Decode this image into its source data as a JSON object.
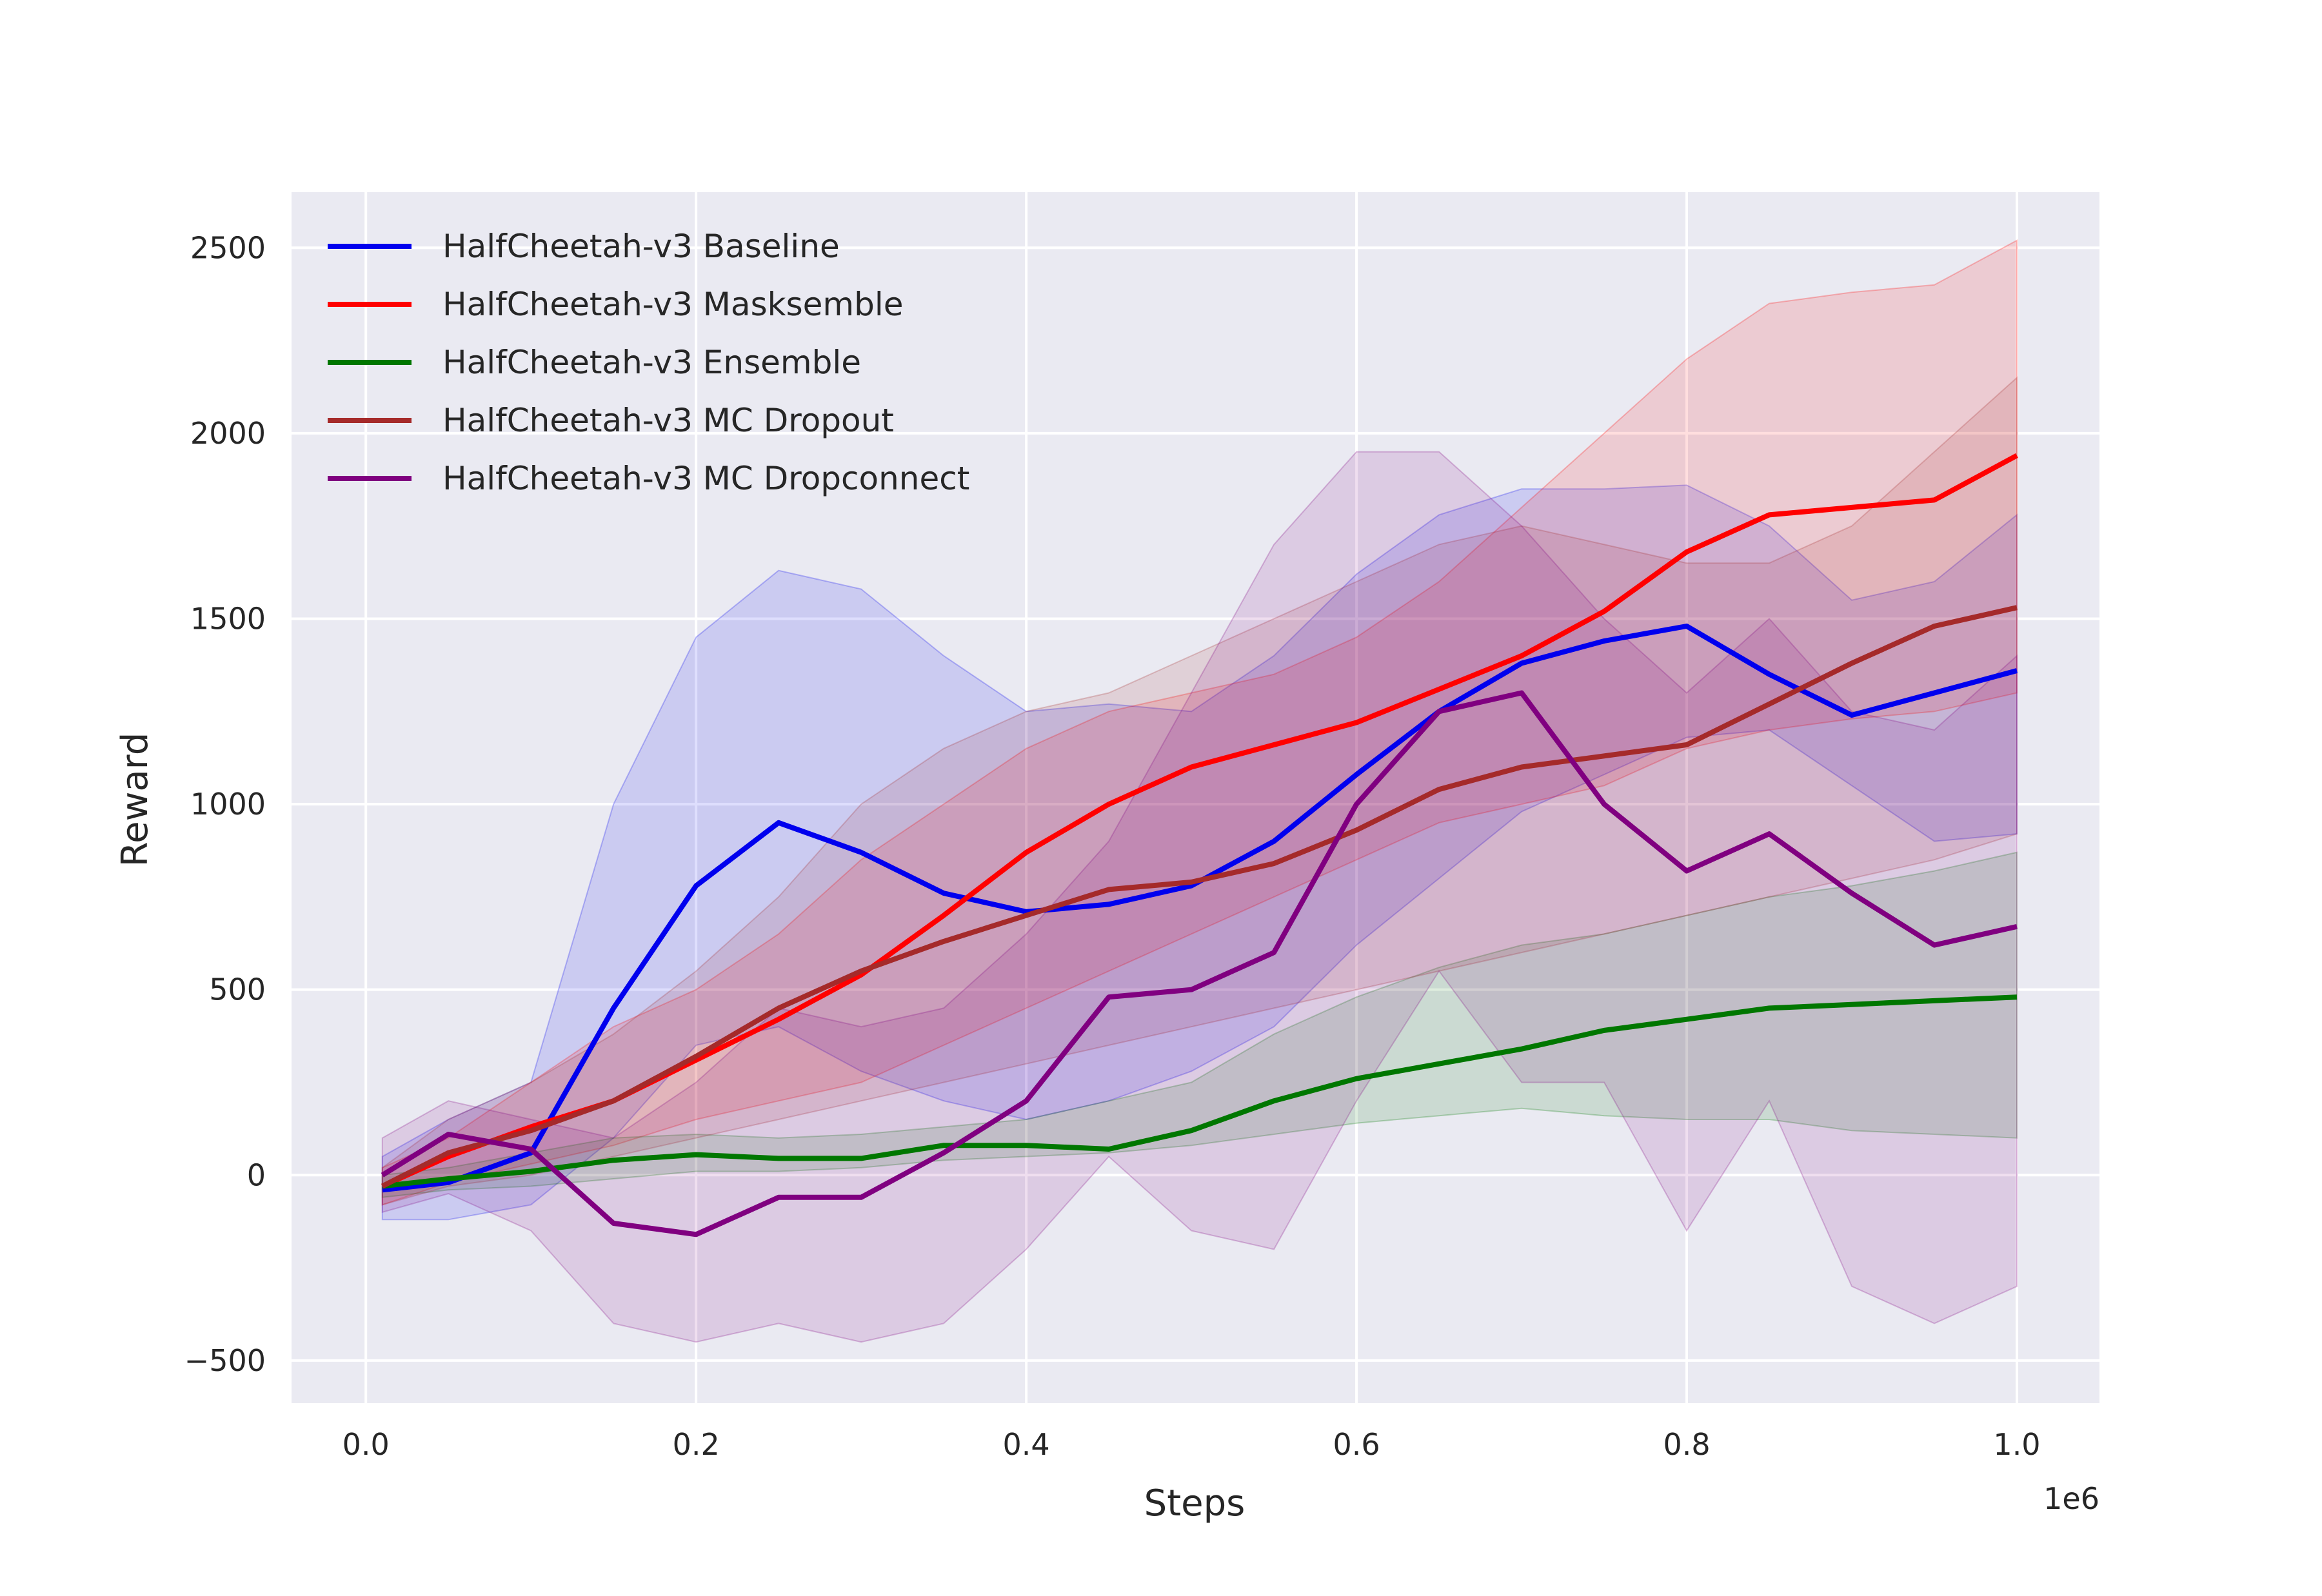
{
  "chart_data": {
    "type": "line",
    "title": "",
    "xlabel": "Steps",
    "ylabel": "Reward",
    "x_offset_label": "1e6",
    "xlim": [
      -0.045,
      1.05
    ],
    "ylim": [
      -615,
      2650
    ],
    "x_ticks": [
      0.0,
      0.2,
      0.4,
      0.6,
      0.8,
      1.0
    ],
    "x_tick_labels": [
      "0.0",
      "0.2",
      "0.4",
      "0.6",
      "0.8",
      "1.0"
    ],
    "y_ticks": [
      -500,
      0,
      500,
      1000,
      1500,
      2000,
      2500
    ],
    "y_tick_labels": [
      "−500",
      "0",
      "500",
      "1000",
      "1500",
      "2000",
      "2500"
    ],
    "grid": true,
    "legend_position": "top-left",
    "plot_background": "#eaeaf2",
    "x": [
      0.01,
      0.05,
      0.1,
      0.15,
      0.2,
      0.25,
      0.3,
      0.35,
      0.4,
      0.45,
      0.5,
      0.55,
      0.6,
      0.65,
      0.7,
      0.75,
      0.8,
      0.85,
      0.9,
      0.95,
      1.0
    ],
    "series": [
      {
        "name": "HalfCheetah-v3 Baseline",
        "color": "#0000ee",
        "values": [
          -40,
          -20,
          60,
          450,
          780,
          950,
          870,
          760,
          710,
          730,
          780,
          900,
          1080,
          1250,
          1380,
          1440,
          1480,
          1350,
          1240,
          1300,
          1360
        ],
        "upper": [
          50,
          150,
          250,
          1000,
          1450,
          1630,
          1580,
          1400,
          1250,
          1270,
          1250,
          1400,
          1620,
          1780,
          1850,
          1850,
          1860,
          1750,
          1550,
          1600,
          1780
        ],
        "lower": [
          -120,
          -120,
          -80,
          100,
          350,
          400,
          280,
          200,
          150,
          200,
          280,
          400,
          620,
          800,
          980,
          1080,
          1180,
          1200,
          1050,
          900,
          920
        ]
      },
      {
        "name": "HalfCheetah-v3 Masksemble",
        "color": "#ff0000",
        "values": [
          -30,
          50,
          130,
          200,
          310,
          420,
          540,
          700,
          870,
          1000,
          1100,
          1160,
          1220,
          1310,
          1400,
          1520,
          1680,
          1780,
          1800,
          1820,
          1940
        ],
        "upper": [
          20,
          100,
          250,
          400,
          500,
          650,
          850,
          1000,
          1150,
          1250,
          1300,
          1350,
          1450,
          1600,
          1800,
          2000,
          2200,
          2350,
          2380,
          2400,
          2520
        ],
        "lower": [
          -80,
          -20,
          30,
          80,
          150,
          200,
          250,
          350,
          450,
          550,
          650,
          750,
          850,
          950,
          1000,
          1050,
          1150,
          1200,
          1230,
          1250,
          1300
        ]
      },
      {
        "name": "HalfCheetah-v3 Ensemble",
        "color": "#007700",
        "values": [
          -30,
          -10,
          10,
          40,
          55,
          45,
          45,
          80,
          80,
          70,
          120,
          200,
          260,
          300,
          340,
          390,
          420,
          450,
          460,
          470,
          480
        ],
        "upper": [
          0,
          20,
          60,
          100,
          110,
          100,
          110,
          130,
          150,
          200,
          250,
          380,
          480,
          560,
          620,
          650,
          700,
          750,
          780,
          820,
          870
        ],
        "lower": [
          -60,
          -40,
          -30,
          -10,
          10,
          10,
          20,
          40,
          50,
          60,
          80,
          110,
          140,
          160,
          180,
          160,
          150,
          150,
          120,
          110,
          100
        ]
      },
      {
        "name": "HalfCheetah-v3 MC Dropout",
        "color": "#a52a2a",
        "values": [
          -30,
          60,
          120,
          200,
          320,
          450,
          550,
          630,
          700,
          770,
          790,
          840,
          930,
          1040,
          1100,
          1130,
          1160,
          1270,
          1380,
          1480,
          1530
        ],
        "upper": [
          20,
          150,
          250,
          380,
          550,
          750,
          1000,
          1150,
          1250,
          1300,
          1400,
          1500,
          1600,
          1700,
          1750,
          1700,
          1650,
          1650,
          1750,
          1950,
          2150
        ],
        "lower": [
          -80,
          -30,
          0,
          50,
          100,
          150,
          200,
          250,
          300,
          350,
          400,
          450,
          500,
          550,
          600,
          650,
          700,
          750,
          800,
          850,
          920
        ]
      },
      {
        "name": "HalfCheetah-v3 MC Dropconnect",
        "color": "#800080",
        "values": [
          0,
          110,
          70,
          -130,
          -160,
          -60,
          -60,
          60,
          200,
          480,
          500,
          600,
          1000,
          1250,
          1300,
          1000,
          820,
          920,
          760,
          620,
          670
        ],
        "upper": [
          100,
          200,
          150,
          100,
          250,
          450,
          400,
          450,
          650,
          900,
          1300,
          1700,
          1950,
          1950,
          1750,
          1500,
          1300,
          1500,
          1250,
          1200,
          1400
        ],
        "lower": [
          -100,
          -50,
          -150,
          -400,
          -450,
          -400,
          -450,
          -400,
          -200,
          50,
          -150,
          -200,
          200,
          550,
          250,
          250,
          -150,
          200,
          -300,
          -400,
          -300
        ]
      }
    ]
  }
}
